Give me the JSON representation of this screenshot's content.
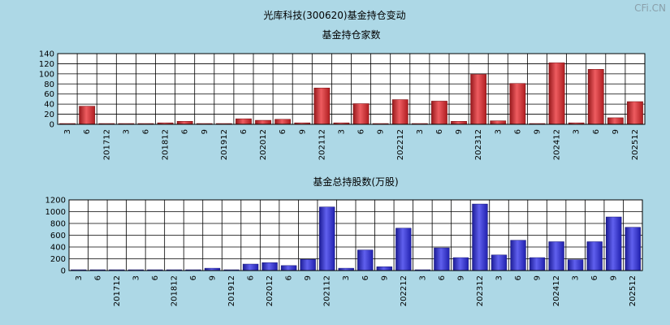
{
  "page": {
    "title": "光库科技(300620)基金持仓变动",
    "watermark": "CFi.CN"
  },
  "chart_data": [
    {
      "type": "bar",
      "title": "基金持仓家数",
      "ylim": [
        0,
        140
      ],
      "yticks": [
        0,
        20,
        40,
        60,
        80,
        100,
        120,
        140
      ],
      "color": "#e8262b",
      "categories": [
        "3",
        "6",
        "201712",
        "3",
        "6",
        "201812",
        "6",
        "9",
        "201912",
        "6",
        "202012",
        "6",
        "9",
        "202112",
        "3",
        "6",
        "9",
        "202212",
        "3",
        "6",
        "9",
        "202312",
        "3",
        "6",
        "9",
        "202412",
        "3",
        "6",
        "9",
        "202512"
      ],
      "values": [
        1,
        36,
        1,
        1,
        1,
        3,
        6,
        1,
        1,
        11,
        8,
        10,
        3,
        72,
        3,
        41,
        1,
        49,
        1,
        46,
        6,
        99,
        7,
        81,
        1,
        122,
        3,
        109,
        13,
        45
      ]
    },
    {
      "type": "bar",
      "title": "基金总持股数(万股)",
      "ylim": [
        0,
        1200
      ],
      "yticks": [
        0,
        200,
        400,
        600,
        800,
        1000,
        1200
      ],
      "color": "#2b2be8",
      "categories": [
        "3",
        "6",
        "201712",
        "3",
        "6",
        "201812",
        "6",
        "9",
        "201912",
        "6",
        "202012",
        "6",
        "9",
        "202112",
        "3",
        "6",
        "9",
        "202212",
        "3",
        "6",
        "9",
        "202312",
        "3",
        "6",
        "9",
        "202412",
        "3",
        "6",
        "9",
        "202512"
      ],
      "values": [
        5,
        10,
        5,
        5,
        5,
        5,
        5,
        40,
        5,
        110,
        135,
        85,
        190,
        1080,
        40,
        350,
        65,
        720,
        5,
        385,
        220,
        1130,
        265,
        515,
        220,
        490,
        185,
        490,
        910,
        735
      ]
    }
  ]
}
